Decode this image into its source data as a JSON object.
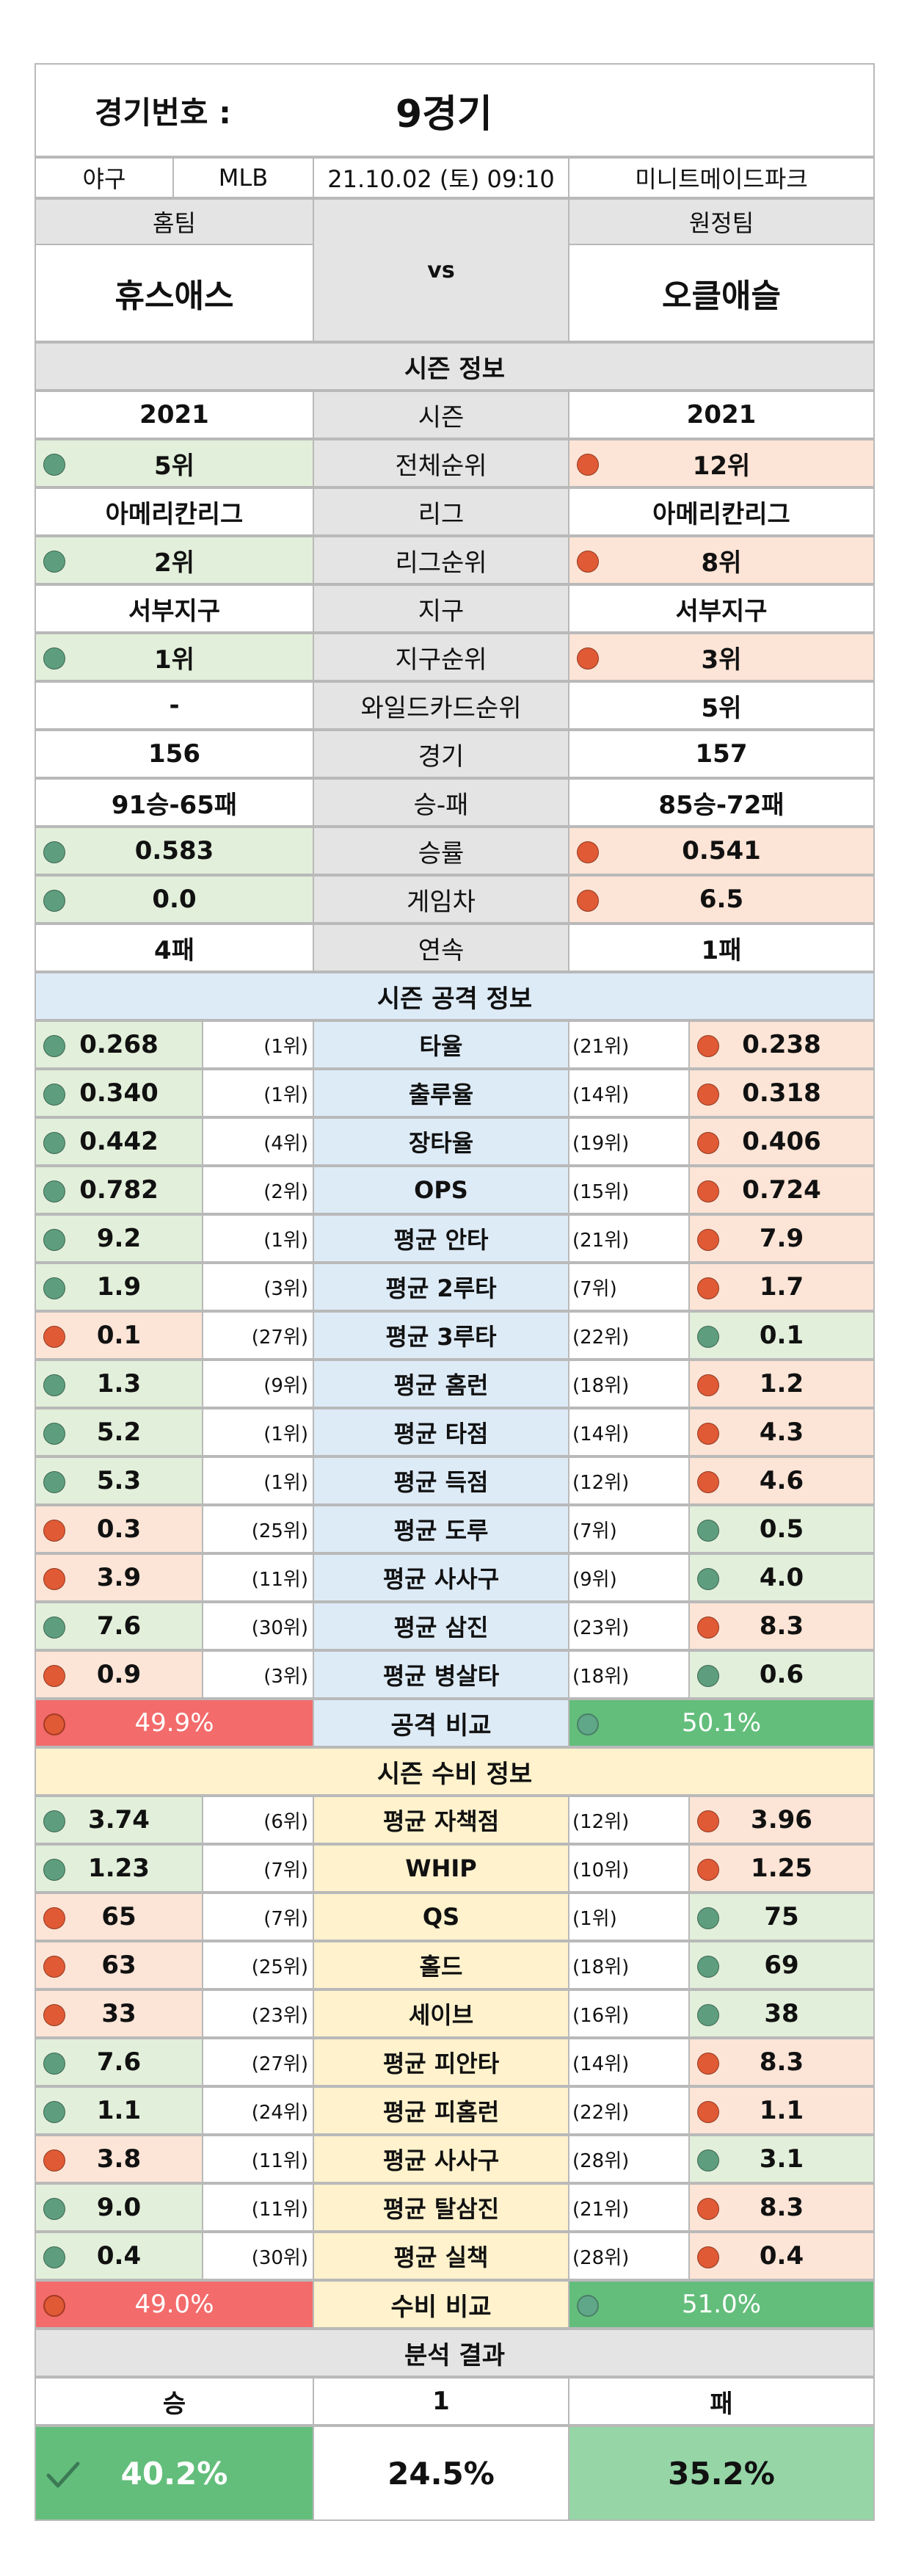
{
  "header": {
    "label": "경기번호 :",
    "game": "9경기",
    "sport": "야구",
    "league": "MLB",
    "datetime": "21.10.02 (토) 09:10",
    "venue": "미니트메이드파크",
    "home_label": "홈팀",
    "away_label": "원정팀",
    "vs": "vs",
    "home_team": "휴스애스",
    "away_team": "오클애슬"
  },
  "season": {
    "title": "시즌 정보",
    "rows": [
      {
        "label": "시즌",
        "home": "2021",
        "away": "2021"
      },
      {
        "label": "전체순위",
        "home": "5위",
        "away": "12위"
      },
      {
        "label": "리그",
        "home": "아메리칸리그",
        "away": "아메리칸리그"
      },
      {
        "label": "리그순위",
        "home": "2위",
        "away": "8위"
      },
      {
        "label": "지구",
        "home": "서부지구",
        "away": "서부지구"
      },
      {
        "label": "지구순위",
        "home": "1위",
        "away": "3위"
      },
      {
        "label": "와일드카드순위",
        "home": "-",
        "away": "5위"
      },
      {
        "label": "경기",
        "home": "156",
        "away": "157"
      },
      {
        "label": "승-패",
        "home": "91승-65패",
        "away": "85승-72패"
      },
      {
        "label": "승률",
        "home": "0.583",
        "away": "0.541"
      },
      {
        "label": "게임차",
        "home": "0.0",
        "away": "6.5"
      },
      {
        "label": "연속",
        "home": "4패",
        "away": "1패"
      }
    ]
  },
  "offense": {
    "title": "시즌 공격 정보",
    "rows": [
      {
        "label": "타율",
        "home": "0.268",
        "home_rank": "(1위)",
        "away": "0.238",
        "away_rank": "(21위)"
      },
      {
        "label": "출루율",
        "home": "0.340",
        "home_rank": "(1위)",
        "away": "0.318",
        "away_rank": "(14위)"
      },
      {
        "label": "장타율",
        "home": "0.442",
        "home_rank": "(4위)",
        "away": "0.406",
        "away_rank": "(19위)"
      },
      {
        "label": "OPS",
        "home": "0.782",
        "home_rank": "(2위)",
        "away": "0.724",
        "away_rank": "(15위)"
      },
      {
        "label": "평균 안타",
        "home": "9.2",
        "home_rank": "(1위)",
        "away": "7.9",
        "away_rank": "(21위)"
      },
      {
        "label": "평균 2루타",
        "home": "1.9",
        "home_rank": "(3위)",
        "away": "1.7",
        "away_rank": "(7위)"
      },
      {
        "label": "평균 3루타",
        "home": "0.1",
        "home_rank": "(27위)",
        "away": "0.1",
        "away_rank": "(22위)"
      },
      {
        "label": "평균 홈런",
        "home": "1.3",
        "home_rank": "(9위)",
        "away": "1.2",
        "away_rank": "(18위)"
      },
      {
        "label": "평균 타점",
        "home": "5.2",
        "home_rank": "(1위)",
        "away": "4.3",
        "away_rank": "(14위)"
      },
      {
        "label": "평균 득점",
        "home": "5.3",
        "home_rank": "(1위)",
        "away": "4.6",
        "away_rank": "(12위)"
      },
      {
        "label": "평균 도루",
        "home": "0.3",
        "home_rank": "(25위)",
        "away": "0.5",
        "away_rank": "(7위)"
      },
      {
        "label": "평균 사사구",
        "home": "3.9",
        "home_rank": "(11위)",
        "away": "4.0",
        "away_rank": "(9위)"
      },
      {
        "label": "평균 삼진",
        "home": "7.6",
        "home_rank": "(30위)",
        "away": "8.3",
        "away_rank": "(23위)"
      },
      {
        "label": "평균 병살타",
        "home": "0.9",
        "home_rank": "(3위)",
        "away": "0.6",
        "away_rank": "(18위)"
      }
    ],
    "compare_label": "공격 비교",
    "home_pct": "49.9%",
    "away_pct": "50.1%"
  },
  "defense": {
    "title": "시즌 수비 정보",
    "rows": [
      {
        "label": "평균 자책점",
        "home": "3.74",
        "home_rank": "(6위)",
        "away": "3.96",
        "away_rank": "(12위)"
      },
      {
        "label": "WHIP",
        "home": "1.23",
        "home_rank": "(7위)",
        "away": "1.25",
        "away_rank": "(10위)"
      },
      {
        "label": "QS",
        "home": "65",
        "home_rank": "(7위)",
        "away": "75",
        "away_rank": "(1위)"
      },
      {
        "label": "홀드",
        "home": "63",
        "home_rank": "(25위)",
        "away": "69",
        "away_rank": "(18위)"
      },
      {
        "label": "세이브",
        "home": "33",
        "home_rank": "(23위)",
        "away": "38",
        "away_rank": "(16위)"
      },
      {
        "label": "평균 피안타",
        "home": "7.6",
        "home_rank": "(27위)",
        "away": "8.3",
        "away_rank": "(14위)"
      },
      {
        "label": "평균 피홈런",
        "home": "1.1",
        "home_rank": "(24위)",
        "away": "1.1",
        "away_rank": "(22위)"
      },
      {
        "label": "평균 사사구",
        "home": "3.8",
        "home_rank": "(11위)",
        "away": "3.1",
        "away_rank": "(28위)"
      },
      {
        "label": "평균 탈삼진",
        "home": "9.0",
        "home_rank": "(11위)",
        "away": "8.3",
        "away_rank": "(21위)"
      },
      {
        "label": "평균 실책",
        "home": "0.4",
        "home_rank": "(30위)",
        "away": "0.4",
        "away_rank": "(28위)"
      }
    ],
    "compare_label": "수비 비교",
    "home_pct": "49.0%",
    "away_pct": "51.0%"
  },
  "analysis": {
    "title": "분석 결과",
    "win_label": "승",
    "draw_label": "1",
    "loss_label": "패",
    "win_pct": "40.2%",
    "draw_pct": "24.5%",
    "loss_pct": "35.2%"
  },
  "colors": {
    "good": "#e2efda",
    "bad": "#fce4d6",
    "good_dot": "#5e9e7f",
    "bad_dot": "#e05a35"
  }
}
